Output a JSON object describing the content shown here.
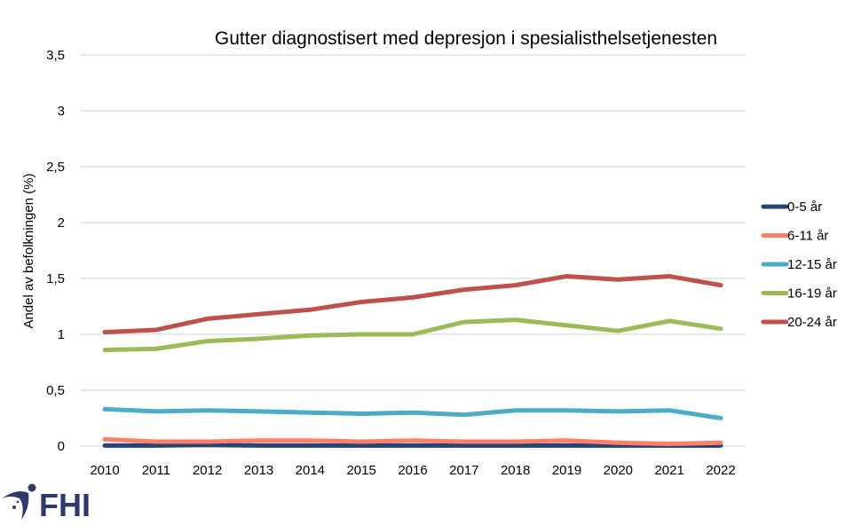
{
  "chart_data": {
    "type": "line",
    "title": "Gutter diagnostisert med depresjon i spesialisthelsetjenesten",
    "xlabel": "",
    "ylabel": "Andel av befolkningen (%)",
    "ylim": [
      0,
      3.5
    ],
    "yticks": [
      "0",
      "0,5",
      "1",
      "1,5",
      "2",
      "2,5",
      "3",
      "3,5"
    ],
    "ytick_values": [
      0,
      0.5,
      1,
      1.5,
      2,
      2.5,
      3,
      3.5
    ],
    "grid": true,
    "legend_position": "right",
    "x": [
      "2010",
      "2011",
      "2012",
      "2013",
      "2014",
      "2015",
      "2016",
      "2017",
      "2018",
      "2019",
      "2020",
      "2021",
      "2022"
    ],
    "series": [
      {
        "name": "0-5 år",
        "color": "#264478",
        "values": [
          0.005,
          0.005,
          0.01,
          0.005,
          0.005,
          0.005,
          0.005,
          0.005,
          0.005,
          0.005,
          0.005,
          0.005,
          0.005
        ]
      },
      {
        "name": "6-11 år",
        "color": "#FF7F66",
        "values": [
          0.06,
          0.04,
          0.04,
          0.05,
          0.05,
          0.04,
          0.05,
          0.04,
          0.04,
          0.05,
          0.03,
          0.02,
          0.03
        ]
      },
      {
        "name": "12-15 år",
        "color": "#4BACC6",
        "values": [
          0.33,
          0.31,
          0.32,
          0.31,
          0.3,
          0.29,
          0.3,
          0.28,
          0.32,
          0.32,
          0.31,
          0.32,
          0.25
        ]
      },
      {
        "name": "16-19 år",
        "color": "#9BBB59",
        "values": [
          0.86,
          0.87,
          0.94,
          0.96,
          0.99,
          1.0,
          1.0,
          1.11,
          1.13,
          1.08,
          1.03,
          1.12,
          1.05
        ]
      },
      {
        "name": "20-24 år",
        "color": "#C0504D",
        "values": [
          1.02,
          1.04,
          1.14,
          1.18,
          1.22,
          1.29,
          1.33,
          1.4,
          1.44,
          1.52,
          1.49,
          1.52,
          1.44
        ]
      }
    ]
  },
  "logo": {
    "text": "FHI",
    "color": "#2e3a6e"
  }
}
